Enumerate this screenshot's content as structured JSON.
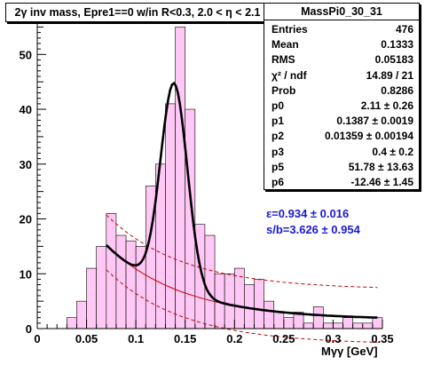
{
  "chart_data": {
    "type": "bar",
    "title": "2γ inv mass, Epre1==0 w/in R<0.3, 2.0 < η < 2.1",
    "xlabel": "Mγγ [GeV]",
    "ylabel": "",
    "xlim": [
      0,
      0.35
    ],
    "ylim": [
      0,
      57.5
    ],
    "xticks": [
      "0",
      "0.05",
      "0.1",
      "0.15",
      "0.2",
      "0.25",
      "0.3",
      "0.35"
    ],
    "yticks": [
      "0",
      "10",
      "20",
      "30",
      "40",
      "50"
    ],
    "bin_width": 0.01,
    "bins_low_edge": [
      0.03,
      0.04,
      0.05,
      0.06,
      0.07,
      0.08,
      0.09,
      0.1,
      0.11,
      0.12,
      0.13,
      0.14,
      0.15,
      0.16,
      0.17,
      0.18,
      0.19,
      0.2,
      0.21,
      0.22,
      0.23,
      0.24,
      0.25,
      0.26,
      0.27,
      0.28,
      0.29,
      0.3,
      0.31,
      0.32,
      0.33,
      0.34
    ],
    "values": [
      2,
      5,
      11,
      15,
      21,
      17,
      16,
      15,
      26,
      30,
      41,
      55,
      40,
      19,
      17,
      10,
      10,
      11,
      8,
      9,
      5,
      3,
      2,
      3,
      1,
      4,
      1,
      1,
      2,
      1,
      1,
      2
    ],
    "fill_color": "#ffc8f5",
    "fit_color": "#000000",
    "component_color": "#cc0000",
    "stats": {
      "name": "MassPi0_30_31",
      "rows": [
        {
          "key": "Entries",
          "value": "476"
        },
        {
          "key": "Mean",
          "value": "0.1333"
        },
        {
          "key": "RMS",
          "value": "0.05183"
        },
        {
          "key": "χ² / ndf",
          "value": "14.89 / 21"
        },
        {
          "key": "Prob",
          "value": "0.8286"
        },
        {
          "key": "p0",
          "value": "2.11 ± 0.26"
        },
        {
          "key": "p1",
          "value": "0.1387 ± 0.0019"
        },
        {
          "key": "p2",
          "value": "0.01359 ± 0.00194"
        },
        {
          "key": "p3",
          "value": "0.4 ± 0.2"
        },
        {
          "key": "p5",
          "value": "51.78 ± 13.63"
        },
        {
          "key": "p6",
          "value": "-12.46 ± 1.45"
        }
      ]
    },
    "annotations": [
      "ε=0.934 ± 0.016",
      "s/b=3.626 ± 0.954"
    ]
  }
}
